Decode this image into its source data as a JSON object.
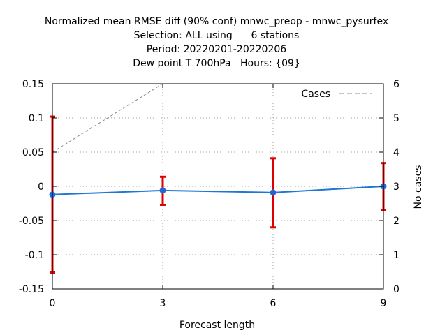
{
  "chart_data": {
    "type": "line",
    "title_lines": [
      "Normalized mean RMSE diff (90% conf) mnwc_preop - mnwc_pysurfex",
      "Selection: ALL using      6 stations",
      "Period: 20220201-20220206",
      "Dew point T 700hPa   Hours: {09}"
    ],
    "xlabel": "Forecast length",
    "ylabel": "",
    "y2label": "No cases",
    "x": [
      0,
      3,
      6,
      9
    ],
    "xlim": [
      0,
      9
    ],
    "ylim": [
      -0.15,
      0.15
    ],
    "y2lim": [
      0,
      6
    ],
    "x_ticks": [
      "0",
      "3",
      "6",
      "9"
    ],
    "y_ticks": [
      "0.15",
      "0.1",
      "0.05",
      "0",
      "-0.05",
      "-0.1",
      "-0.15"
    ],
    "y2_ticks": [
      "6",
      "5",
      "4",
      "3",
      "2",
      "1",
      "0"
    ],
    "grid": true,
    "series": [
      {
        "values": [
          -0.012,
          -0.006,
          -0.009,
          0.0
        ],
        "error_low": [
          -0.126,
          -0.027,
          -0.06,
          -0.035
        ],
        "error_high": [
          0.102,
          0.014,
          0.041,
          0.034
        ],
        "color": "#1f77d4",
        "error_color": "#dd0000",
        "axis": "y"
      },
      {
        "name": "Cases",
        "values": [
          4,
          6,
          6,
          6
        ],
        "color": "#888888",
        "style": "dashed",
        "axis": "y2"
      }
    ],
    "legend": {
      "position": "top-right",
      "entries": [
        "Cases"
      ]
    }
  }
}
